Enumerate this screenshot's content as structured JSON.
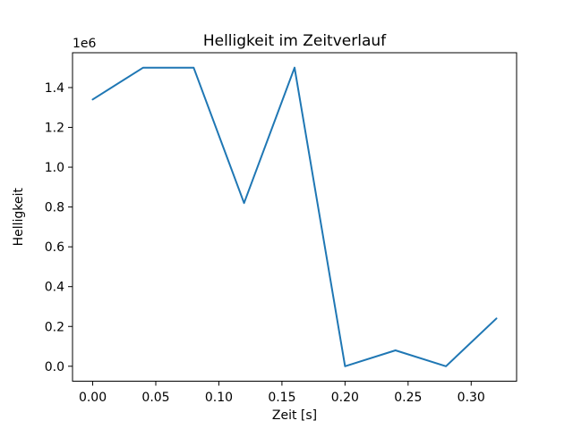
{
  "figure": {
    "background": "#ffffff"
  },
  "chart_data": {
    "type": "line",
    "title": "Helligkeit im Zeitverlauf",
    "xlabel": "Zeit [s]",
    "ylabel": "Helligkeit",
    "y_offset_text": "1e6",
    "x": [
      0.0,
      0.04,
      0.08,
      0.12,
      0.16,
      0.2,
      0.24,
      0.28,
      0.32
    ],
    "y": [
      1340000,
      1500000,
      1500000,
      820000,
      1500000,
      0,
      80000,
      0,
      240000
    ],
    "xticks": [
      0.0,
      0.05,
      0.1,
      0.15,
      0.2,
      0.25,
      0.3
    ],
    "xtick_labels": [
      "0.00",
      "0.05",
      "0.10",
      "0.15",
      "0.20",
      "0.25",
      "0.30"
    ],
    "yticks": [
      0,
      200000,
      400000,
      600000,
      800000,
      1000000,
      1200000,
      1400000
    ],
    "ytick_labels": [
      "0.0",
      "0.2",
      "0.4",
      "0.6",
      "0.8",
      "1.0",
      "1.2",
      "1.4"
    ],
    "xlim": [
      -0.016,
      0.336
    ],
    "ylim": [
      -75000,
      1575000
    ],
    "line_color": "#1f77b4",
    "axis_color": "#000000",
    "grid": false,
    "legend": null
  }
}
